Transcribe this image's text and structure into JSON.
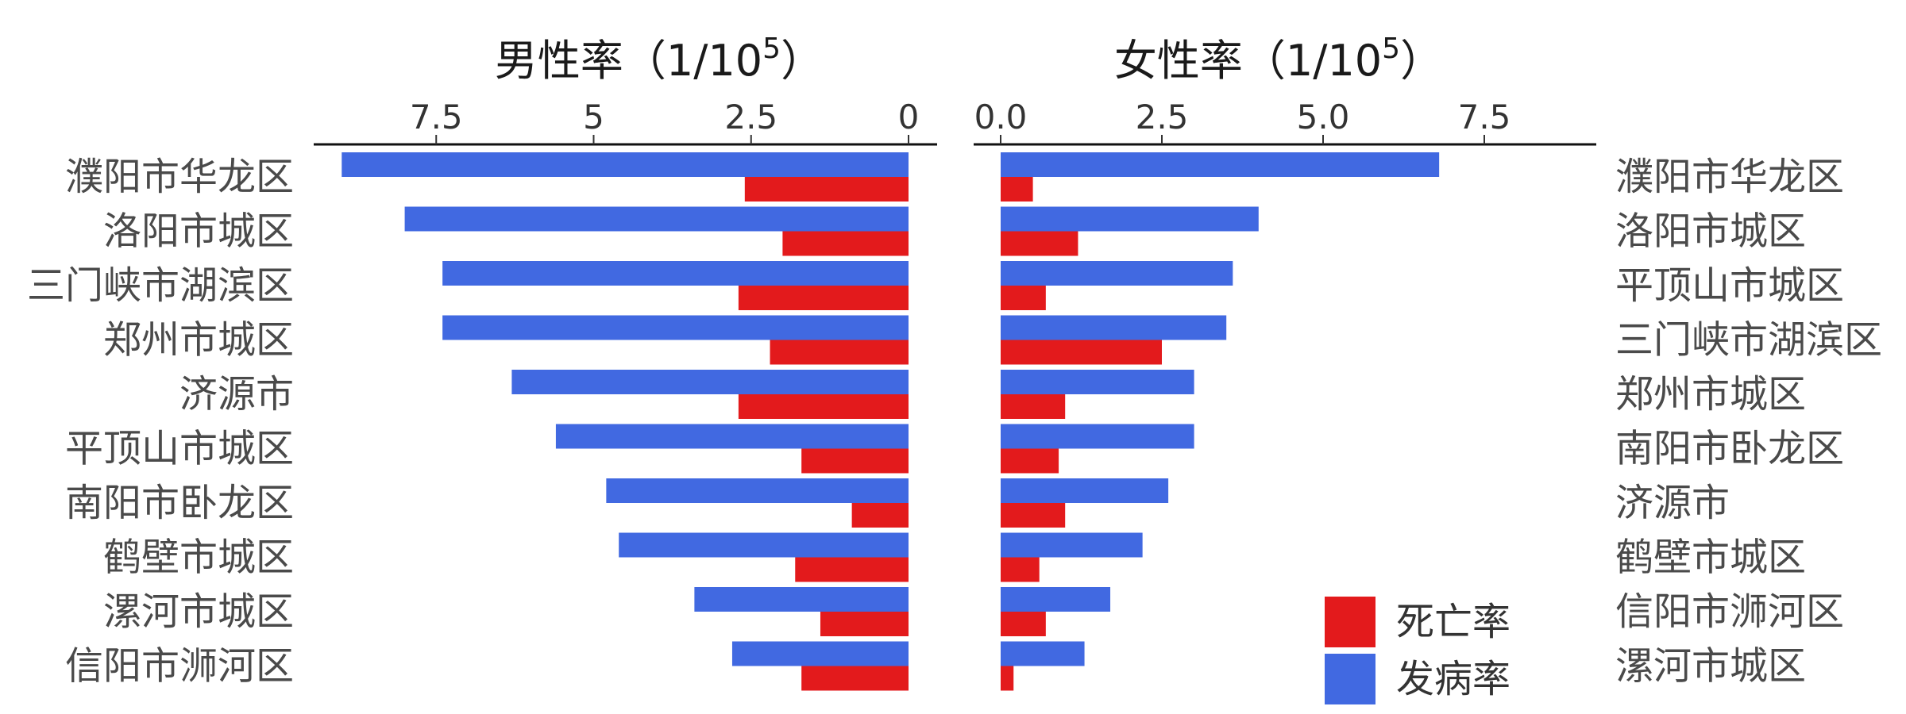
{
  "colors": {
    "incidence": "#4169E1",
    "mortality": "#E31A1C"
  },
  "legend": {
    "mortality_label": "死亡率",
    "incidence_label": "发病率"
  },
  "chart_data": [
    {
      "type": "bar",
      "orientation": "horizontal-reversed",
      "title": "男性率（1/10",
      "title_superscript": "5",
      "title_close": "）",
      "xlim": [
        0,
        9.3
      ],
      "xticks": [
        0,
        2.5,
        5,
        7.5
      ],
      "xtick_labels": [
        "0",
        "2.5",
        "5",
        "7.5"
      ],
      "categories": [
        "濮阳市华龙区",
        "洛阳市城区",
        "三门峡市湖滨区",
        "郑州市城区",
        "济源市",
        "平顶山市城区",
        "南阳市卧龙区",
        "鹤壁市城区",
        "漯河市城区",
        "信阳市浉河区"
      ],
      "series": [
        {
          "name": "发病率",
          "values": [
            9.0,
            8.0,
            7.4,
            7.4,
            6.3,
            5.6,
            4.8,
            4.6,
            3.4,
            2.8
          ]
        },
        {
          "name": "死亡率",
          "values": [
            2.6,
            2.0,
            2.7,
            2.2,
            2.7,
            1.7,
            0.9,
            1.8,
            1.4,
            1.7
          ]
        }
      ]
    },
    {
      "type": "bar",
      "orientation": "horizontal",
      "title": "女性率（1/10",
      "title_superscript": "5",
      "title_close": "）",
      "xlim": [
        0,
        9.3
      ],
      "xticks": [
        0,
        2.5,
        5,
        7.5
      ],
      "xtick_labels": [
        "0.0",
        "2.5",
        "5.0",
        "7.5"
      ],
      "categories": [
        "濮阳市华龙区",
        "洛阳市城区",
        "平顶山市城区",
        "三门峡市湖滨区",
        "郑州市城区",
        "南阳市卧龙区",
        "济源市",
        "鹤壁市城区",
        "信阳市浉河区",
        "漯河市城区"
      ],
      "series": [
        {
          "name": "发病率",
          "values": [
            6.8,
            4.0,
            3.6,
            3.5,
            3.0,
            3.0,
            2.6,
            2.2,
            1.7,
            1.3
          ]
        },
        {
          "name": "死亡率",
          "values": [
            0.5,
            1.2,
            0.7,
            2.5,
            1.0,
            0.9,
            1.0,
            0.6,
            0.7,
            0.2
          ]
        }
      ]
    }
  ]
}
